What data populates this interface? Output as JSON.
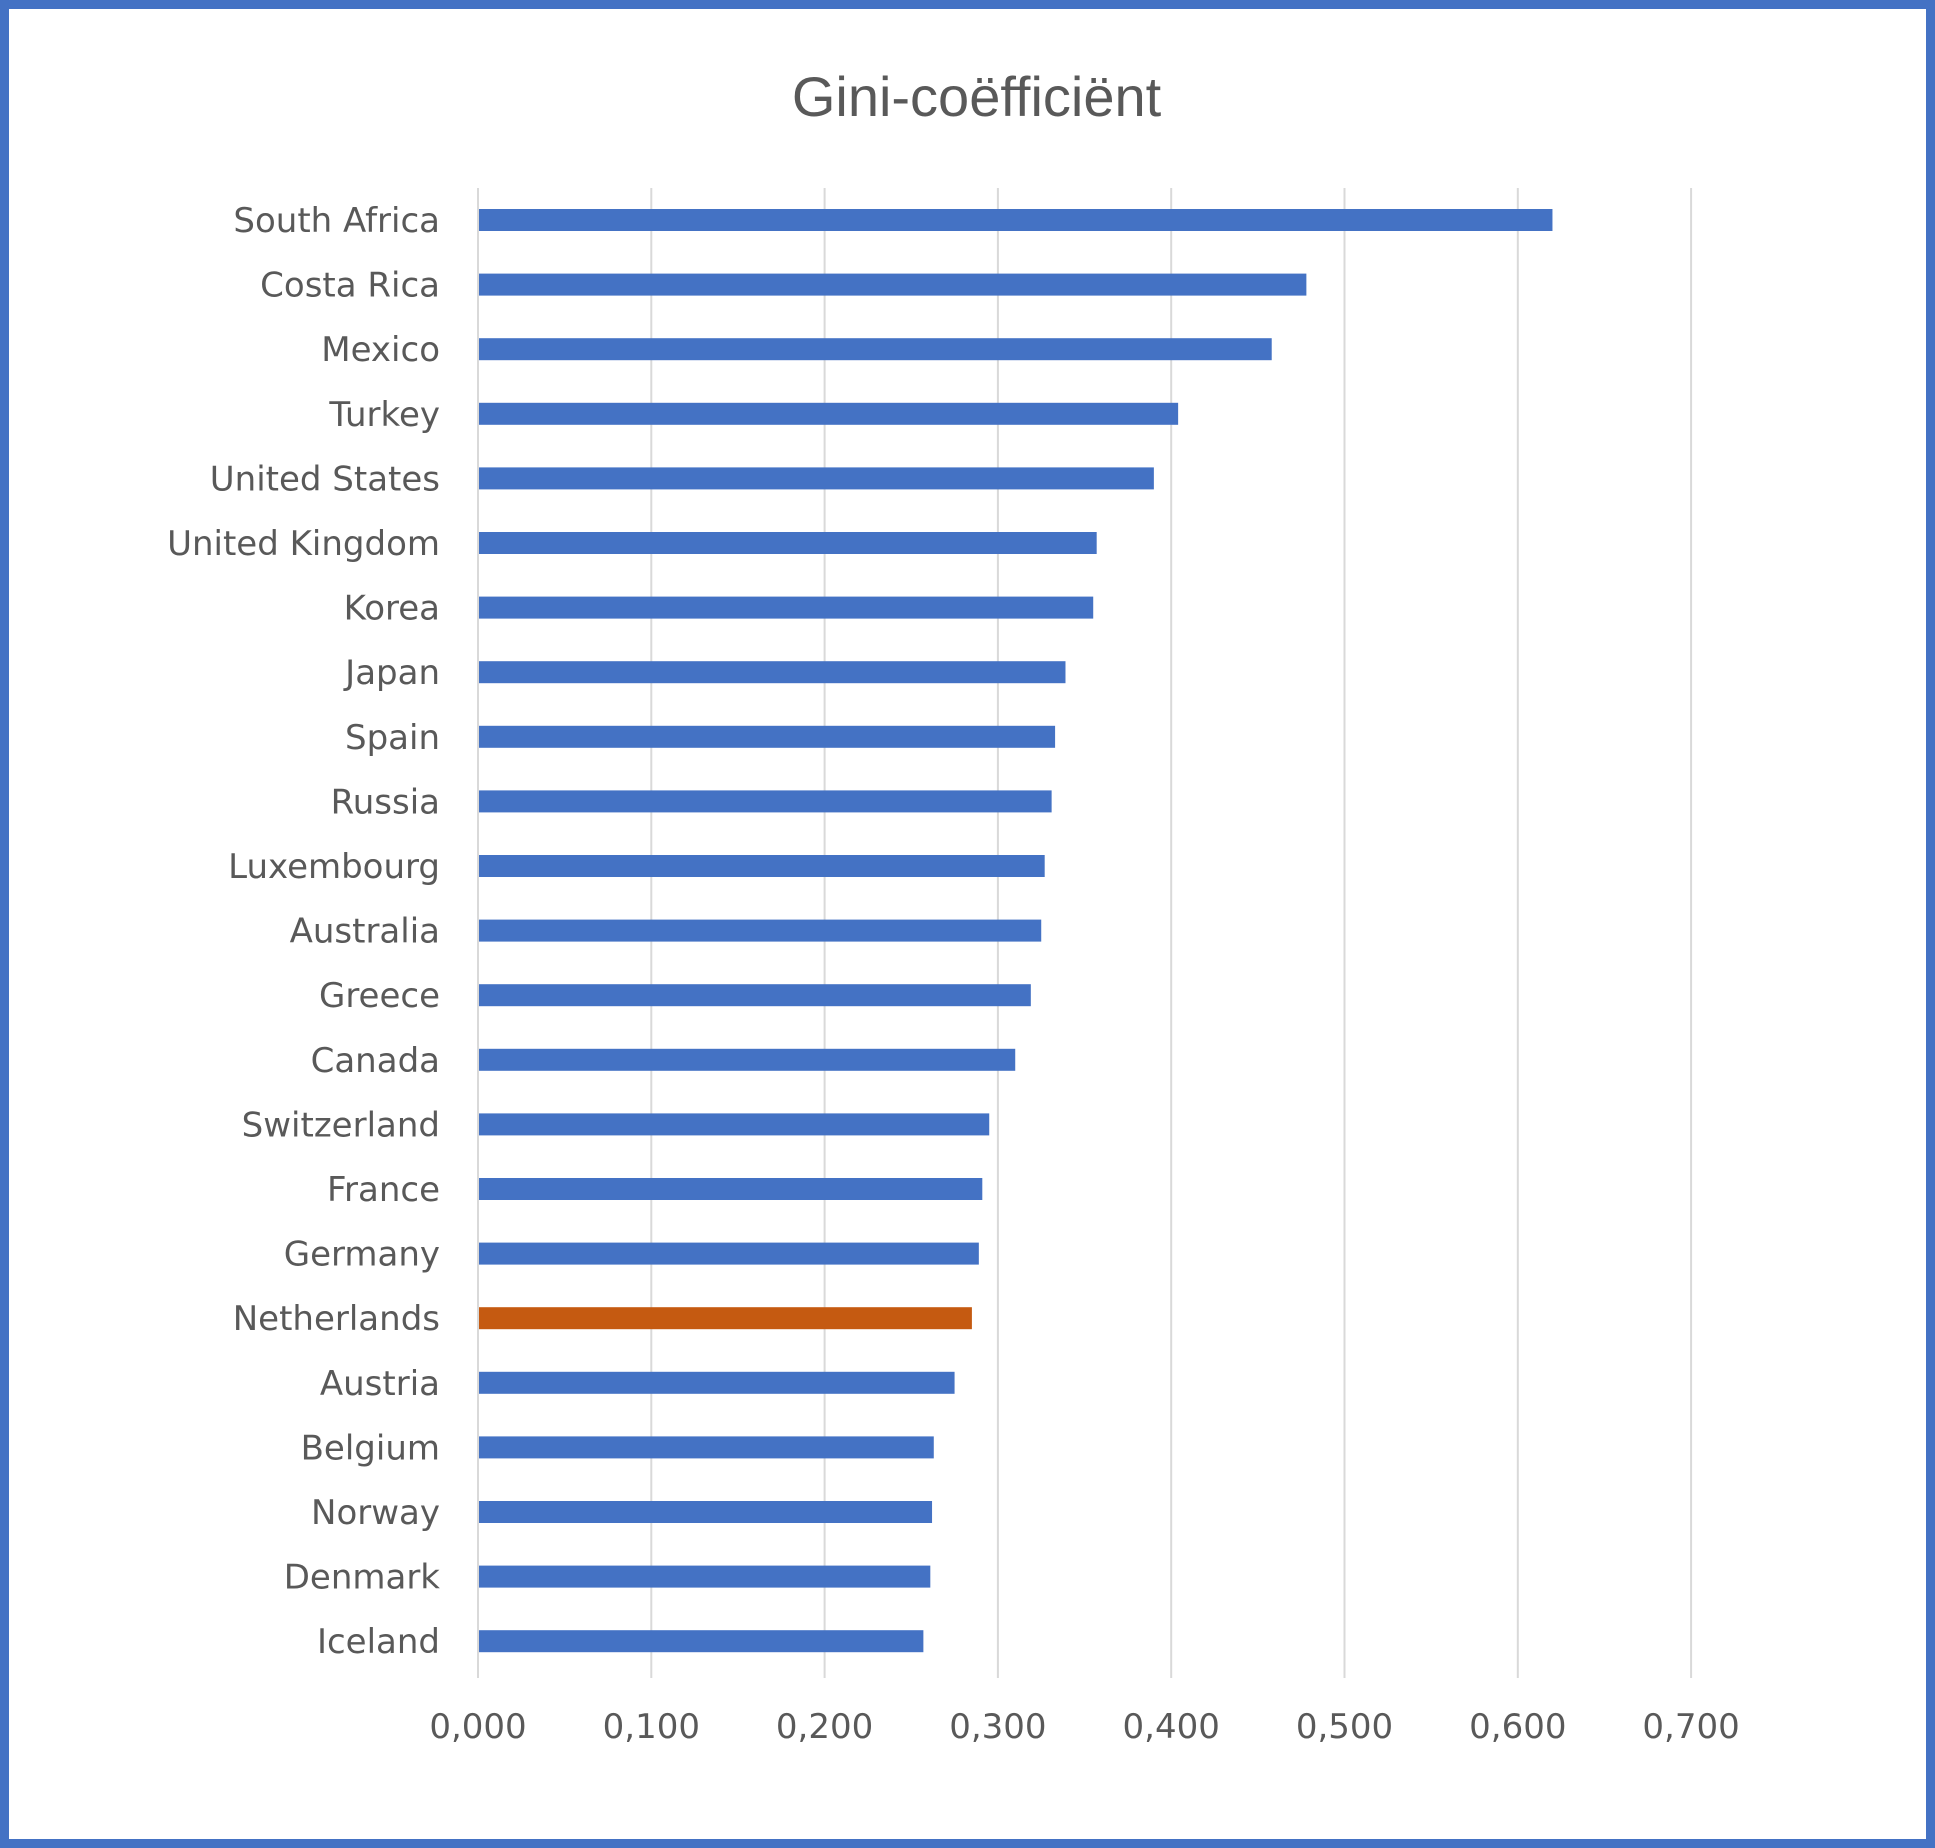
{
  "chart_data": {
    "type": "bar",
    "orientation": "horizontal",
    "title": "Gini-coëfficiënt",
    "xlabel": "",
    "ylabel": "",
    "xlim": [
      0,
      0.7
    ],
    "grid": true,
    "legend": "none",
    "x_ticks": [
      "0,000",
      "0,100",
      "0,200",
      "0,300",
      "0,400",
      "0,500",
      "0,600",
      "0,700"
    ],
    "x_tick_values": [
      0,
      0.1,
      0.2,
      0.3,
      0.4,
      0.5,
      0.6,
      0.7
    ],
    "categories": [
      "South Africa",
      "Costa Rica",
      "Mexico",
      "Turkey",
      "United States",
      "United Kingdom",
      "Korea",
      "Japan",
      "Spain",
      "Russia",
      "Luxembourg",
      "Australia",
      "Greece",
      "Canada",
      "Switzerland",
      "France",
      "Germany",
      "Netherlands",
      "Austria",
      "Belgium",
      "Norway",
      "Denmark",
      "Iceland"
    ],
    "values": [
      0.62,
      0.478,
      0.458,
      0.404,
      0.39,
      0.357,
      0.355,
      0.339,
      0.333,
      0.331,
      0.327,
      0.325,
      0.319,
      0.31,
      0.295,
      0.291,
      0.289,
      0.285,
      0.275,
      0.263,
      0.262,
      0.261,
      0.257
    ],
    "highlight": "Netherlands",
    "colors": {
      "bar": "#4472c4",
      "highlight": "#c55a11",
      "grid": "#d9d9d9",
      "frame": "#4472c4"
    }
  }
}
